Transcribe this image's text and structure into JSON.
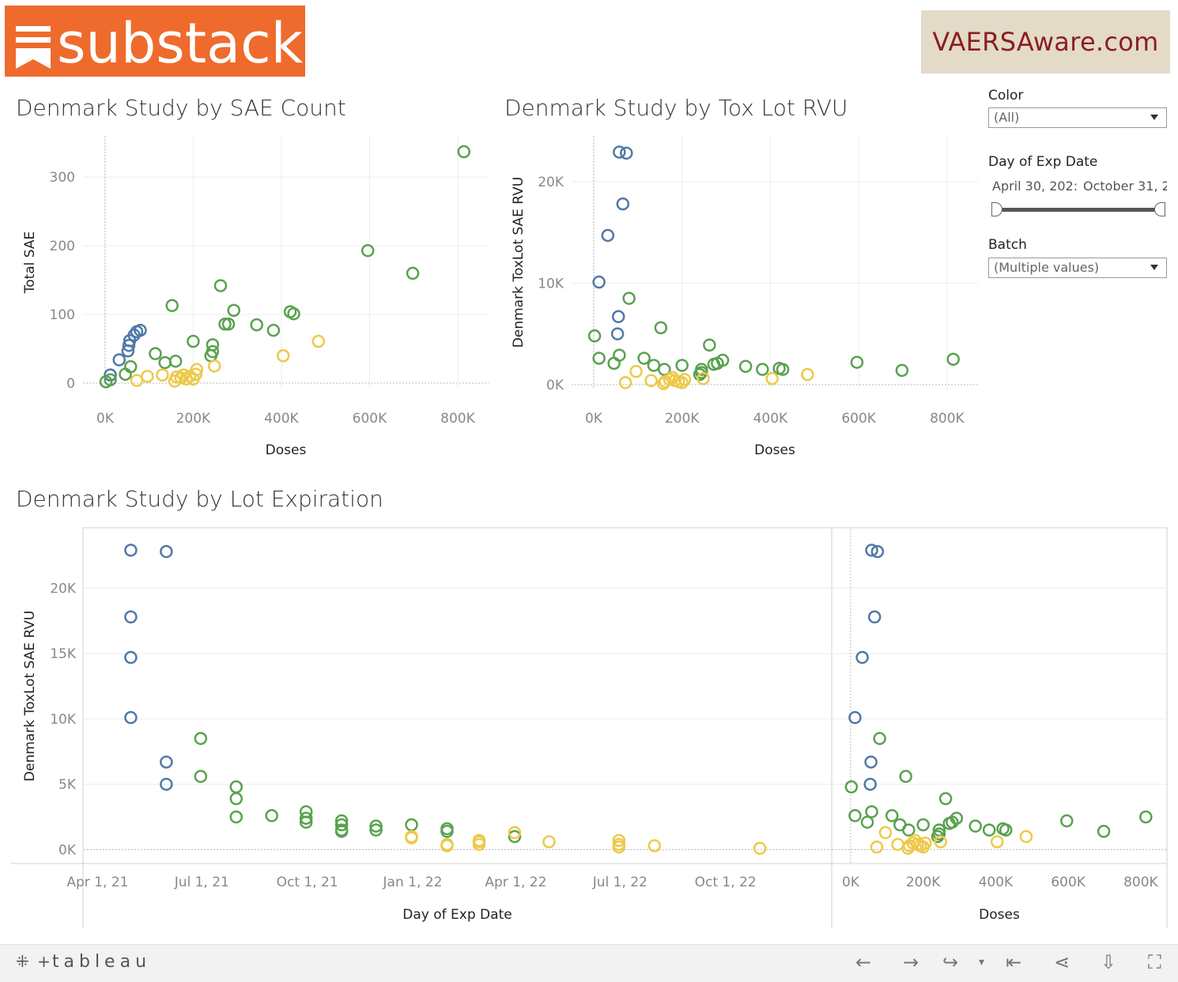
{
  "logos": {
    "left": "substack",
    "right": "VAERSAware.com"
  },
  "titles": {
    "chart1": "Denmark Study by SAE Count",
    "chart2": "Denmark Study by Tox Lot RVU",
    "chart3": "Denmark Study by Lot Expiration"
  },
  "filters": {
    "color_label": "Color",
    "color_value": "(All)",
    "date_label": "Day of Exp Date",
    "date_start": "April 30, 202:",
    "date_end": "October 31, 2",
    "batch_label": "Batch",
    "batch_value": "(Multiple values)"
  },
  "footer": {
    "brand": "tableau"
  },
  "colors": {
    "blue": "#4e79a7",
    "green": "#59a14f",
    "yellow": "#edc948"
  },
  "chart_data": [
    {
      "type": "scatter",
      "title": "Denmark Study by SAE Count",
      "xlabel": "Doses",
      "ylabel": "Total SAE",
      "xlim": [
        -50000,
        870000
      ],
      "ylim": [
        -8,
        360
      ],
      "xticks": [
        0,
        200000,
        400000,
        600000,
        800000
      ],
      "xticklabels": [
        "0K",
        "200K",
        "400K",
        "600K",
        "800K"
      ],
      "yticks": [
        0,
        100,
        200,
        300
      ],
      "yticklabels": [
        "0",
        "100",
        "200",
        "300"
      ],
      "series": [
        {
          "color": "blue",
          "points": [
            [
              12000,
              12
            ],
            [
              32000,
              34
            ],
            [
              52000,
              47
            ],
            [
              54000,
              55
            ],
            [
              56000,
              62
            ],
            [
              66000,
              70
            ],
            [
              72000,
              75
            ],
            [
              80000,
              77
            ]
          ]
        },
        {
          "color": "green",
          "points": [
            [
              2000,
              2
            ],
            [
              12000,
              5
            ],
            [
              46000,
              13
            ],
            [
              58000,
              24
            ],
            [
              114000,
              43
            ],
            [
              136000,
              30
            ],
            [
              152000,
              113
            ],
            [
              160000,
              32
            ],
            [
              200000,
              61
            ],
            [
              240000,
              40
            ],
            [
              244000,
              46
            ],
            [
              244000,
              56
            ],
            [
              262000,
              142
            ],
            [
              272000,
              86
            ],
            [
              280000,
              86
            ],
            [
              292000,
              106
            ],
            [
              344000,
              85
            ],
            [
              382000,
              77
            ],
            [
              420000,
              104
            ],
            [
              428000,
              101
            ],
            [
              596000,
              193
            ],
            [
              698000,
              160
            ],
            [
              814000,
              337
            ]
          ]
        },
        {
          "color": "yellow",
          "points": [
            [
              72000,
              4
            ],
            [
              96000,
              10
            ],
            [
              130000,
              12
            ],
            [
              158000,
              3
            ],
            [
              162000,
              9
            ],
            [
              172000,
              8
            ],
            [
              178000,
              12
            ],
            [
              184000,
              6
            ],
            [
              192000,
              10
            ],
            [
              200000,
              6
            ],
            [
              206000,
              13
            ],
            [
              208000,
              20
            ],
            [
              248000,
              25
            ],
            [
              404000,
              40
            ],
            [
              484000,
              61
            ]
          ]
        }
      ]
    },
    {
      "type": "scatter",
      "title": "Denmark Study by Tox Lot RVU",
      "xlabel": "Doses",
      "ylabel": "Denmark ToxLot SAE RVU",
      "xlim": [
        -50000,
        870000
      ],
      "ylim": [
        -400,
        24500
      ],
      "xticks": [
        0,
        200000,
        400000,
        600000,
        800000
      ],
      "xticklabels": [
        "0K",
        "200K",
        "400K",
        "600K",
        "800K"
      ],
      "yticks": [
        0,
        10000,
        20000
      ],
      "yticklabels": [
        "0K",
        "10K",
        "20K"
      ],
      "series": [
        {
          "color": "blue",
          "points": [
            [
              12000,
              10100
            ],
            [
              32000,
              14700
            ],
            [
              54000,
              5000
            ],
            [
              56000,
              6700
            ],
            [
              58000,
              22900
            ],
            [
              66000,
              17800
            ],
            [
              74000,
              22800
            ]
          ]
        },
        {
          "color": "green",
          "points": [
            [
              2000,
              4800
            ],
            [
              12000,
              2600
            ],
            [
              46000,
              2100
            ],
            [
              58000,
              2900
            ],
            [
              80000,
              8500
            ],
            [
              114000,
              2600
            ],
            [
              136000,
              1900
            ],
            [
              152000,
              5600
            ],
            [
              160000,
              1500
            ],
            [
              200000,
              1900
            ],
            [
              240000,
              1000
            ],
            [
              244000,
              1200
            ],
            [
              244000,
              1500
            ],
            [
              262000,
              3900
            ],
            [
              272000,
              2000
            ],
            [
              280000,
              2100
            ],
            [
              292000,
              2400
            ],
            [
              344000,
              1800
            ],
            [
              382000,
              1500
            ],
            [
              420000,
              1600
            ],
            [
              428000,
              1500
            ],
            [
              596000,
              2200
            ],
            [
              698000,
              1400
            ],
            [
              814000,
              2500
            ]
          ]
        },
        {
          "color": "yellow",
          "points": [
            [
              72000,
              200
            ],
            [
              96000,
              1300
            ],
            [
              130000,
              400
            ],
            [
              158000,
              100
            ],
            [
              162000,
              300
            ],
            [
              172000,
              500
            ],
            [
              178000,
              700
            ],
            [
              184000,
              400
            ],
            [
              192000,
              300
            ],
            [
              200000,
              200
            ],
            [
              206000,
              500
            ],
            [
              248000,
              600
            ],
            [
              404000,
              600
            ],
            [
              484000,
              1000
            ]
          ]
        }
      ]
    },
    {
      "type": "scatter",
      "title": "Denmark Study by Lot Expiration",
      "xlabel": "Day of Exp Date",
      "ylabel": "Denmark ToxLot SAE RVU",
      "xlim": [
        "2021-03-20",
        "2023-01-01"
      ],
      "ylim": [
        -1000,
        24500
      ],
      "xticks": [
        "2021-04-01",
        "2021-07-01",
        "2021-10-01",
        "2022-01-01",
        "2022-04-01",
        "2022-07-01",
        "2022-10-01"
      ],
      "xticklabels": [
        "Apr 1, 21",
        "Jul 1, 21",
        "Oct 1, 21",
        "Jan 1, 22",
        "Apr 1, 22",
        "Jul 1, 22",
        "Oct 1, 22"
      ],
      "yticks": [
        0,
        5000,
        10000,
        15000,
        20000
      ],
      "yticklabels": [
        "0K",
        "5K",
        "10K",
        "15K",
        "20K"
      ],
      "series": [
        {
          "color": "blue",
          "points": [
            [
              "2021-04-30",
              10100
            ],
            [
              "2021-04-30",
              14700
            ],
            [
              "2021-04-30",
              17800
            ],
            [
              "2021-04-30",
              22900
            ],
            [
              "2021-05-31",
              5000
            ],
            [
              "2021-05-31",
              6700
            ],
            [
              "2021-05-31",
              22800
            ]
          ]
        },
        {
          "color": "green",
          "points": [
            [
              "2021-06-30",
              5600
            ],
            [
              "2021-06-30",
              8500
            ],
            [
              "2021-07-31",
              2500
            ],
            [
              "2021-07-31",
              3900
            ],
            [
              "2021-07-31",
              4800
            ],
            [
              "2021-08-31",
              2600
            ],
            [
              "2021-09-30",
              2100
            ],
            [
              "2021-09-30",
              2400
            ],
            [
              "2021-09-30",
              2900
            ],
            [
              "2021-10-31",
              1400
            ],
            [
              "2021-10-31",
              1500
            ],
            [
              "2021-10-31",
              1900
            ],
            [
              "2021-10-31",
              2200
            ],
            [
              "2021-11-30",
              1500
            ],
            [
              "2021-11-30",
              1800
            ],
            [
              "2021-12-31",
              1900
            ],
            [
              "2022-01-31",
              1400
            ],
            [
              "2022-01-31",
              1600
            ],
            [
              "2022-03-31",
              1000
            ]
          ]
        },
        {
          "color": "yellow",
          "points": [
            [
              "2021-12-31",
              900
            ],
            [
              "2021-12-31",
              1000
            ],
            [
              "2022-01-31",
              300
            ],
            [
              "2022-01-31",
              400
            ],
            [
              "2022-02-28",
              400
            ],
            [
              "2022-02-28",
              600
            ],
            [
              "2022-02-28",
              700
            ],
            [
              "2022-03-31",
              1300
            ],
            [
              "2022-04-30",
              600
            ],
            [
              "2022-06-30",
              200
            ],
            [
              "2022-06-30",
              400
            ],
            [
              "2022-06-30",
              700
            ],
            [
              "2022-07-31",
              300
            ],
            [
              "2022-10-31",
              100
            ]
          ]
        }
      ]
    },
    {
      "type": "scatter",
      "xlabel": "Doses",
      "xlim": [
        -50000,
        870000
      ],
      "ylim": [
        -1000,
        24500
      ],
      "xticks": [
        0,
        200000,
        400000,
        600000,
        800000
      ],
      "xticklabels": [
        "0K",
        "200K",
        "400K",
        "600K",
        "800K"
      ],
      "series": [
        {
          "color": "blue",
          "points": [
            [
              12000,
              10100
            ],
            [
              32000,
              14700
            ],
            [
              54000,
              5000
            ],
            [
              56000,
              6700
            ],
            [
              58000,
              22900
            ],
            [
              66000,
              17800
            ],
            [
              74000,
              22800
            ]
          ]
        },
        {
          "color": "green",
          "points": [
            [
              2000,
              4800
            ],
            [
              12000,
              2600
            ],
            [
              46000,
              2100
            ],
            [
              58000,
              2900
            ],
            [
              80000,
              8500
            ],
            [
              114000,
              2600
            ],
            [
              136000,
              1900
            ],
            [
              152000,
              5600
            ],
            [
              160000,
              1500
            ],
            [
              200000,
              1900
            ],
            [
              240000,
              1000
            ],
            [
              244000,
              1200
            ],
            [
              244000,
              1500
            ],
            [
              262000,
              3900
            ],
            [
              272000,
              2000
            ],
            [
              280000,
              2100
            ],
            [
              292000,
              2400
            ],
            [
              344000,
              1800
            ],
            [
              382000,
              1500
            ],
            [
              420000,
              1600
            ],
            [
              428000,
              1500
            ],
            [
              596000,
              2200
            ],
            [
              698000,
              1400
            ],
            [
              814000,
              2500
            ]
          ]
        },
        {
          "color": "yellow",
          "points": [
            [
              72000,
              200
            ],
            [
              96000,
              1300
            ],
            [
              130000,
              400
            ],
            [
              158000,
              100
            ],
            [
              162000,
              300
            ],
            [
              172000,
              500
            ],
            [
              178000,
              700
            ],
            [
              184000,
              400
            ],
            [
              192000,
              300
            ],
            [
              200000,
              200
            ],
            [
              206000,
              500
            ],
            [
              248000,
              600
            ],
            [
              404000,
              600
            ],
            [
              484000,
              1000
            ]
          ]
        }
      ]
    }
  ]
}
